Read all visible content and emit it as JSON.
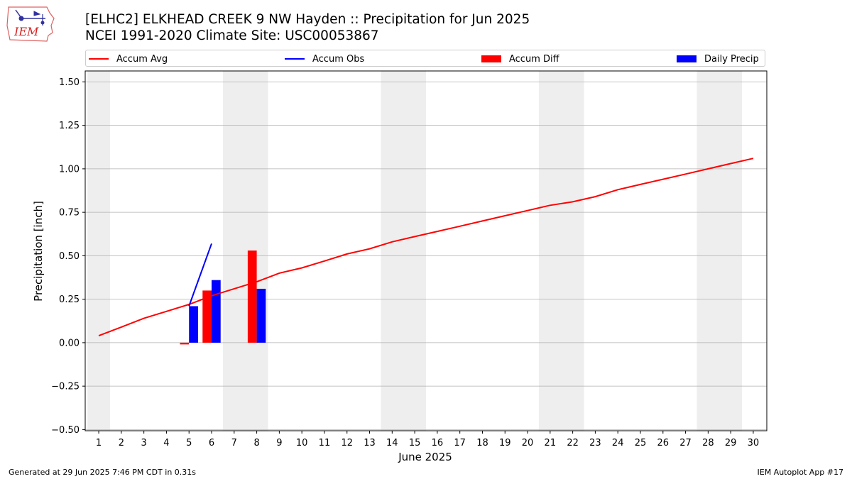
{
  "header": {
    "title_line1": "[ELHC2] ELKHEAD CREEK 9 NW Hayden :: Precipitation for Jun 2025",
    "title_line2": "NCEI 1991-2020 Climate Site: USC00053867",
    "logo_text": "IEM",
    "logo_icon": "iem-weather-logo"
  },
  "legend": {
    "placement": "top",
    "items": [
      {
        "label": "Accum Avg",
        "kind": "line",
        "color": "#ff0000"
      },
      {
        "label": "Accum Obs",
        "kind": "line",
        "color": "#0000ff"
      },
      {
        "label": "Accum Diff",
        "kind": "box",
        "color": "#ff0000"
      },
      {
        "label": "Daily Precip",
        "kind": "box",
        "color": "#0000ff"
      }
    ]
  },
  "footer": {
    "generated": "Generated at 29 Jun 2025 7:46 PM CDT in 0.31s",
    "app": "IEM Autoplot App #17"
  },
  "chart_data": {
    "type": "bar",
    "title": "[ELHC2] ELKHEAD CREEK 9 NW Hayden :: Precipitation for Jun 2025",
    "xlabel": "June 2025",
    "ylabel": "Precipitation [inch]",
    "xlim": [
      1,
      30
    ],
    "ylim": [
      -0.5,
      1.55
    ],
    "x_ticks": [
      1,
      2,
      3,
      4,
      5,
      6,
      7,
      8,
      9,
      10,
      11,
      12,
      13,
      14,
      15,
      16,
      17,
      18,
      19,
      20,
      21,
      22,
      23,
      24,
      25,
      26,
      27,
      28,
      29,
      30
    ],
    "y_ticks": [
      -0.5,
      -0.25,
      0.0,
      0.25,
      0.5,
      0.75,
      1.0,
      1.25,
      1.5
    ],
    "y_tick_labels": [
      "−0.50",
      "−0.25",
      "0.00",
      "0.25",
      "0.50",
      "0.75",
      "1.00",
      "1.25",
      "1.50"
    ],
    "grid": "horizontal",
    "weekend_shading": [
      [
        0.5,
        1.5
      ],
      [
        6.5,
        8.5
      ],
      [
        13.5,
        15.5
      ],
      [
        20.5,
        22.5
      ],
      [
        27.5,
        29.5
      ]
    ],
    "shade_color": "#eeeeee",
    "series": [
      {
        "name": "Accum Avg",
        "type": "line",
        "color": "#ff0000",
        "x": [
          1,
          2,
          3,
          4,
          5,
          6,
          7,
          8,
          9,
          10,
          11,
          12,
          13,
          14,
          15,
          16,
          17,
          18,
          19,
          20,
          21,
          22,
          23,
          24,
          25,
          26,
          27,
          28,
          29,
          30
        ],
        "values": [
          0.04,
          0.09,
          0.14,
          0.18,
          0.22,
          0.27,
          0.31,
          0.35,
          0.4,
          0.43,
          0.47,
          0.51,
          0.54,
          0.58,
          0.61,
          0.64,
          0.67,
          0.7,
          0.73,
          0.76,
          0.79,
          0.81,
          0.84,
          0.88,
          0.91,
          0.94,
          0.97,
          1.0,
          1.03,
          1.06
        ]
      },
      {
        "name": "Accum Obs",
        "type": "line",
        "color": "#0000ff",
        "x": [
          5,
          6
        ],
        "values": [
          0.21,
          0.57
        ]
      },
      {
        "name": "Accum Diff",
        "type": "bar",
        "color": "#ff0000",
        "x": [
          5,
          6,
          8
        ],
        "values": [
          -0.01,
          0.3,
          0.53
        ]
      },
      {
        "name": "Daily Precip",
        "type": "bar",
        "color": "#0000ff",
        "x": [
          5,
          6,
          8
        ],
        "values": [
          0.21,
          0.36,
          0.31
        ]
      }
    ]
  }
}
